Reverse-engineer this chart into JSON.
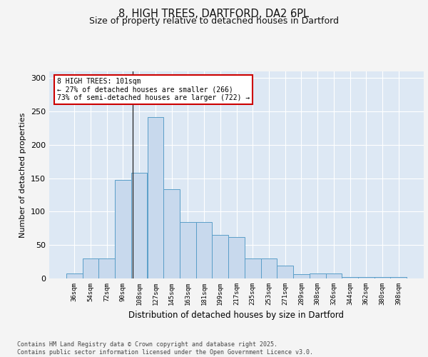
{
  "title1": "8, HIGH TREES, DARTFORD, DA2 6PL",
  "title2": "Size of property relative to detached houses in Dartford",
  "xlabel": "Distribution of detached houses by size in Dartford",
  "ylabel": "Number of detached properties",
  "categories": [
    "36sqm",
    "54sqm",
    "72sqm",
    "90sqm",
    "108sqm",
    "127sqm",
    "145sqm",
    "163sqm",
    "181sqm",
    "199sqm",
    "217sqm",
    "235sqm",
    "253sqm",
    "271sqm",
    "289sqm",
    "308sqm",
    "326sqm",
    "344sqm",
    "362sqm",
    "380sqm",
    "398sqm"
  ],
  "values": [
    8,
    30,
    30,
    147,
    158,
    242,
    134,
    84,
    84,
    65,
    62,
    30,
    30,
    19,
    6,
    8,
    8,
    2,
    2,
    2,
    2
  ],
  "bar_color": "#c8d9ed",
  "bar_edge_color": "#5a9ec8",
  "annotation_text": "8 HIGH TREES: 101sqm\n← 27% of detached houses are smaller (266)\n73% of semi-detached houses are larger (722) →",
  "annotation_box_color": "#ffffff",
  "annotation_box_edge_color": "#cc0000",
  "background_color": "#dde8f4",
  "grid_color": "#ffffff",
  "footer_text": "Contains HM Land Registry data © Crown copyright and database right 2025.\nContains public sector information licensed under the Open Government Licence v3.0.",
  "ylim": [
    0,
    310
  ],
  "yticks": [
    0,
    50,
    100,
    150,
    200,
    250,
    300
  ],
  "fig_bg_color": "#f4f4f4"
}
